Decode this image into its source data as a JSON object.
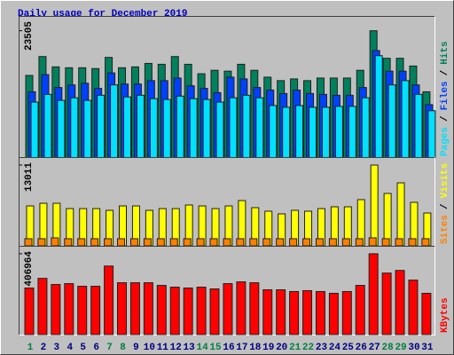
{
  "chart_data": [
    {
      "type": "bar",
      "title": "Daily usage for December 2019",
      "ylim": [
        0,
        25250
      ],
      "yticks": [
        23505
      ],
      "legend_separator": "/",
      "series": [
        {
          "name": "Hits",
          "color": "#00805c",
          "values": [
            15250,
            18740,
            16830,
            16670,
            16670,
            16520,
            18580,
            16670,
            16830,
            17470,
            17310,
            18740,
            17310,
            15560,
            16200,
            16040,
            17310,
            16200,
            14930,
            14290,
            14610,
            14290,
            14770,
            14770,
            14770,
            16200,
            23505,
            18420,
            18420,
            16990,
            12230
          ]
        },
        {
          "name": "Files",
          "color": "#0040ff",
          "values": [
            12230,
            15400,
            13020,
            13500,
            13810,
            12860,
            15720,
            13660,
            13660,
            14290,
            14290,
            14770,
            13340,
            12860,
            12070,
            14930,
            14610,
            13020,
            12550,
            11910,
            12550,
            11910,
            11750,
            11590,
            11590,
            13020,
            19850,
            16040,
            16040,
            13500,
            9850
          ]
        },
        {
          "name": "Pages",
          "color": "#00e0ff",
          "values": [
            10320,
            11750,
            10640,
            11120,
            10640,
            11590,
            13500,
            11280,
            11590,
            10960,
            10800,
            11430,
            10960,
            10800,
            10320,
            11120,
            11590,
            11120,
            9690,
            9370,
            9690,
            9370,
            9370,
            9530,
            9530,
            11120,
            18900,
            13500,
            14290,
            11750,
            8730
          ]
        }
      ]
    },
    {
      "type": "bar",
      "ylim": [
        0,
        13440
      ],
      "yticks": [
        13011
      ],
      "legend_separator": "/",
      "series": [
        {
          "name": "Visits",
          "color": "#ffff00",
          "values": [
            6430,
            6860,
            6860,
            6000,
            6000,
            6000,
            5720,
            6430,
            6430,
            5720,
            6000,
            6000,
            6580,
            6430,
            6000,
            6430,
            7290,
            6150,
            5580,
            5150,
            5720,
            5580,
            6000,
            6290,
            6290,
            7440,
            13011,
            8440,
            10150,
            7010,
            5290
          ]
        },
        {
          "name": "Sites",
          "color": "#ff8000",
          "values": [
            1150,
            1150,
            1290,
            1150,
            1150,
            1150,
            1150,
            1150,
            1150,
            1150,
            1150,
            1150,
            1150,
            1150,
            1150,
            1150,
            1150,
            1150,
            1150,
            1150,
            1150,
            1150,
            1150,
            1150,
            1150,
            1150,
            1290,
            1150,
            1150,
            1150,
            1150
          ]
        }
      ]
    },
    {
      "type": "bar",
      "ylim": [
        0,
        420000
      ],
      "yticks": [
        406964
      ],
      "categories": [
        "1",
        "2",
        "3",
        "4",
        "5",
        "6",
        "7",
        "8",
        "9",
        "10",
        "11",
        "12",
        "13",
        "14",
        "15",
        "16",
        "17",
        "18",
        "19",
        "20",
        "21",
        "22",
        "23",
        "24",
        "25",
        "26",
        "27",
        "28",
        "29",
        "30",
        "31"
      ],
      "category_colors": [
        "#008040",
        "#000080",
        "#000080",
        "#000080",
        "#000080",
        "#000080",
        "#008040",
        "#008040",
        "#000080",
        "#000080",
        "#000080",
        "#000080",
        "#000080",
        "#008040",
        "#008040",
        "#000080",
        "#000080",
        "#000080",
        "#000080",
        "#000080",
        "#008040",
        "#008040",
        "#000080",
        "#000080",
        "#000080",
        "#000080",
        "#000080",
        "#008040",
        "#008040",
        "#000080",
        "#000080"
      ],
      "series": [
        {
          "name": "KBytes",
          "color": "#ff0000",
          "values": [
            234500,
            283100,
            252200,
            256600,
            243300,
            243300,
            345100,
            261000,
            261000,
            261000,
            247700,
            238900,
            234500,
            238900,
            230000,
            256600,
            265400,
            261000,
            225600,
            225600,
            216800,
            221200,
            216800,
            207900,
            216800,
            247700,
            406964,
            309700,
            323000,
            274300,
            207900
          ]
        }
      ]
    }
  ]
}
